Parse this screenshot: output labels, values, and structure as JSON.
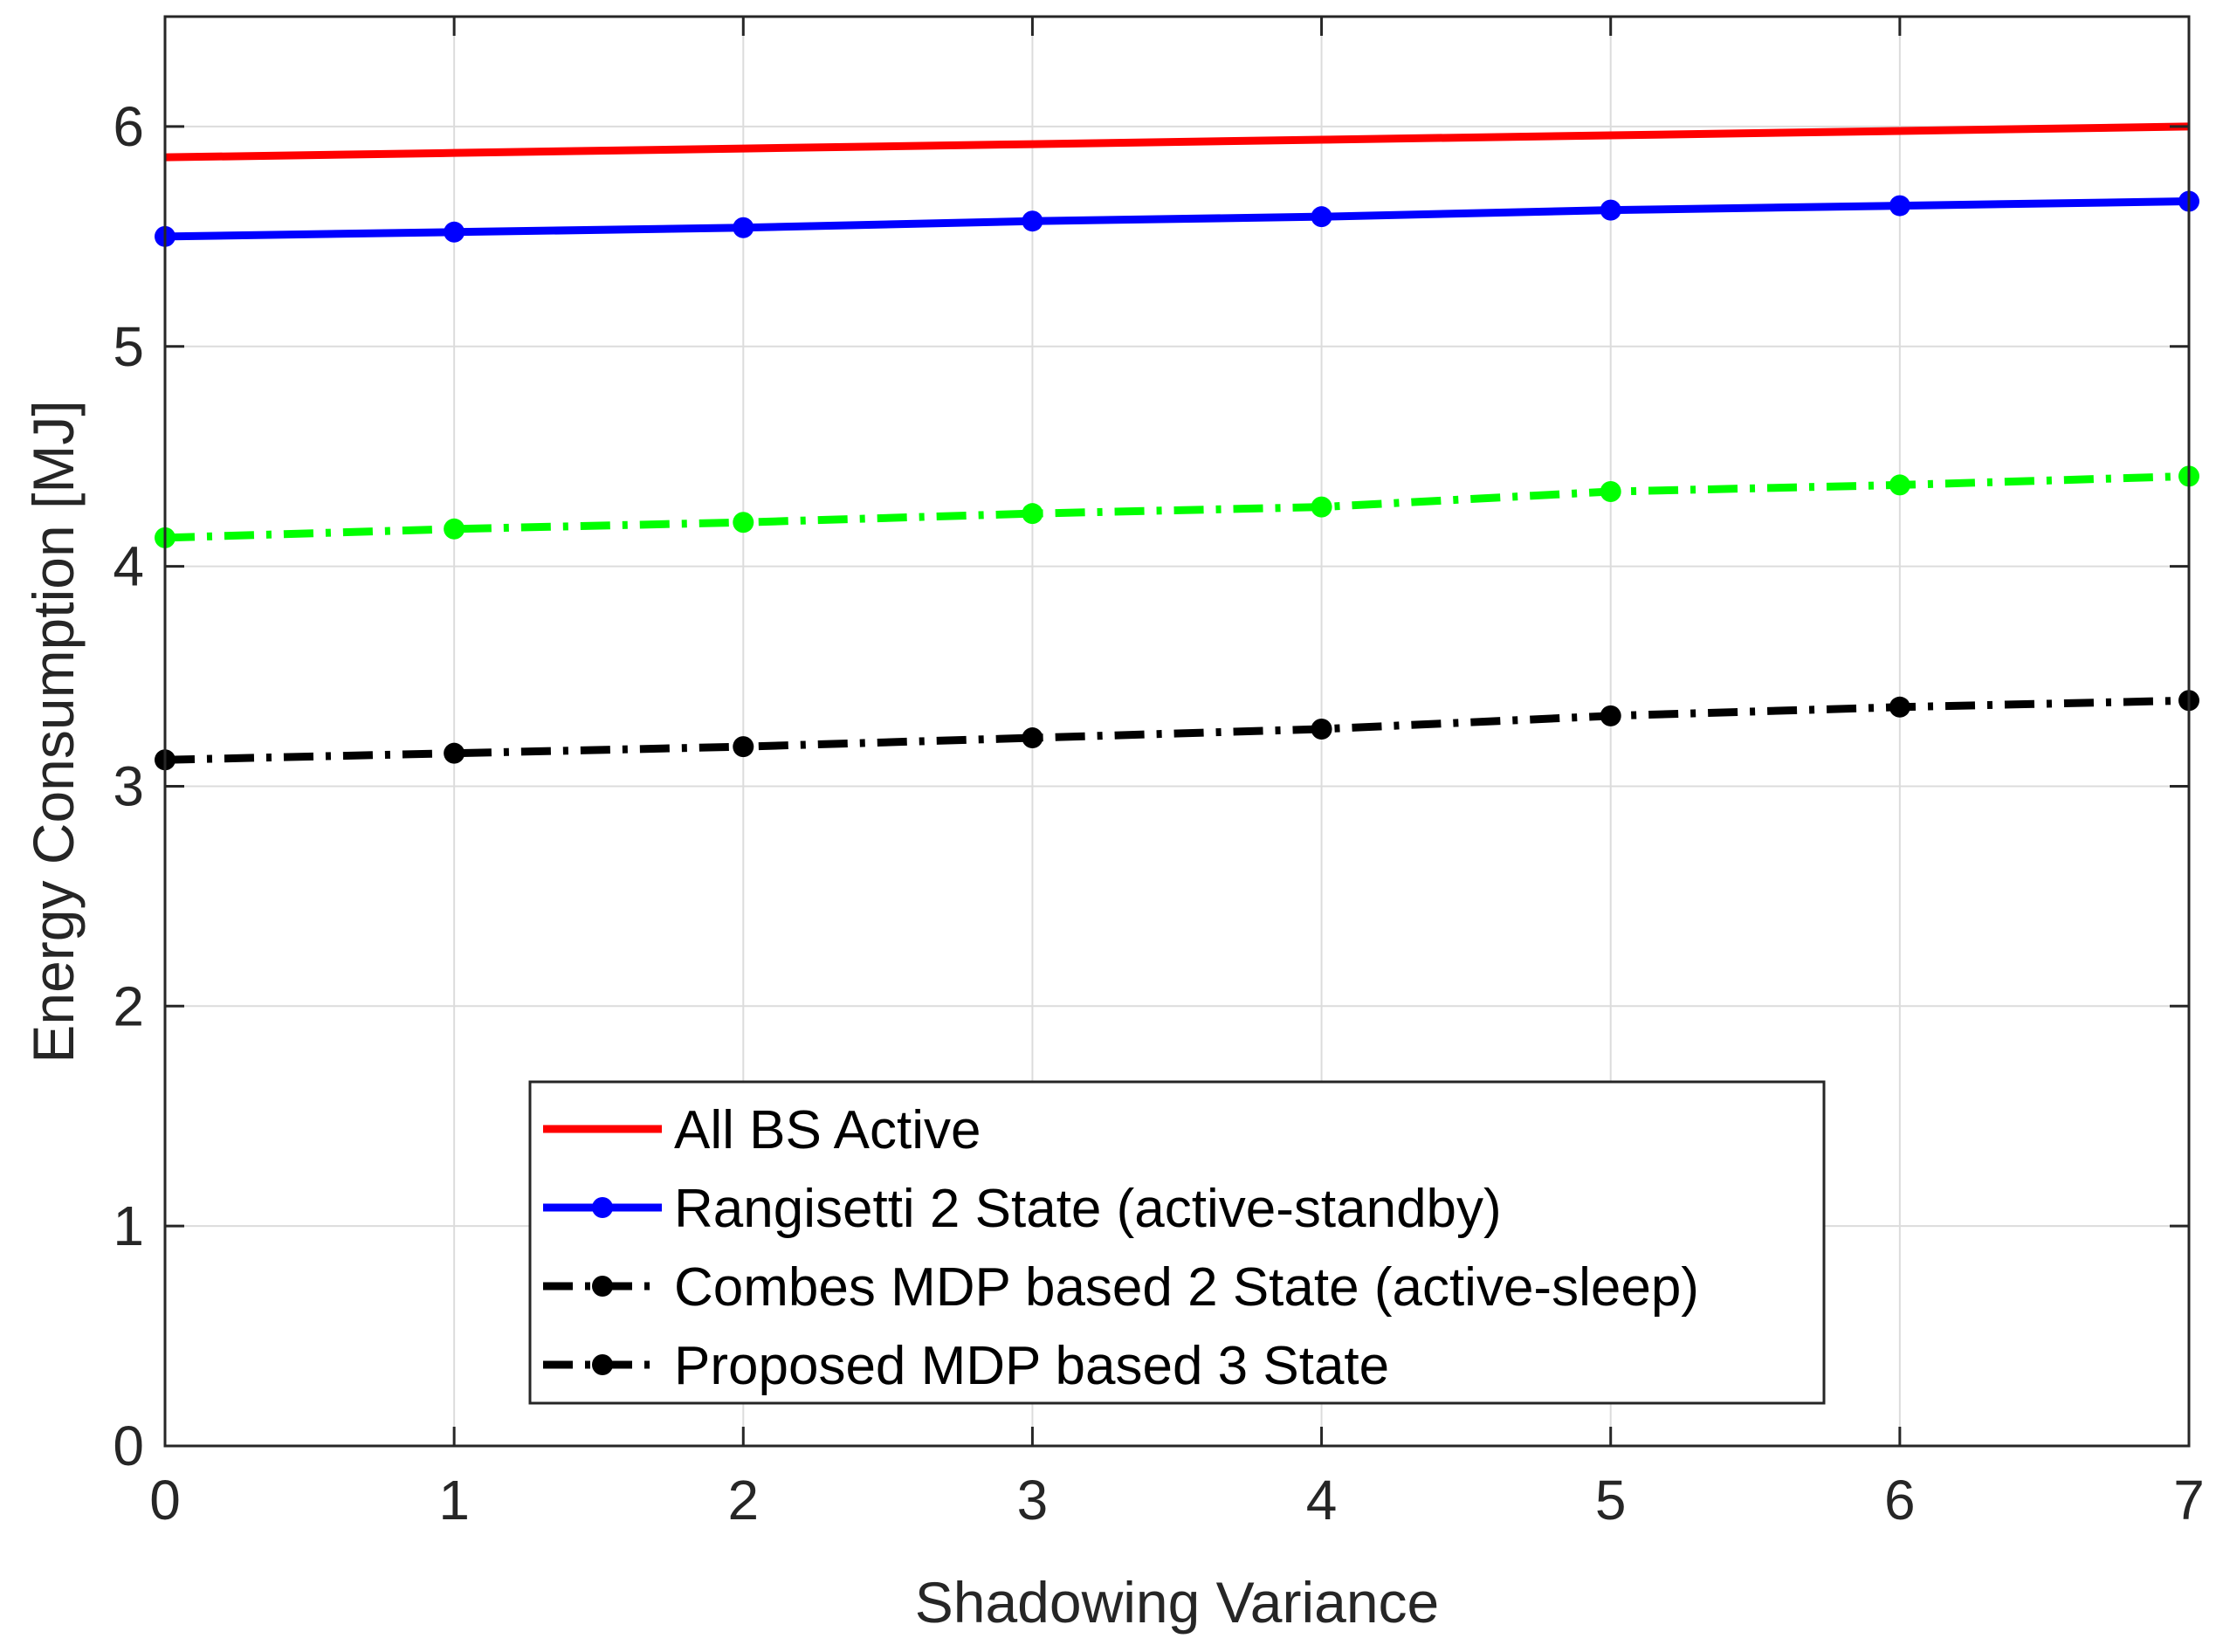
{
  "chart_data": {
    "type": "line",
    "title": "",
    "xlabel": "Shadowing Variance",
    "ylabel": "Energy Consumption [MJ]",
    "xlim": [
      0,
      7
    ],
    "ylim": [
      0,
      6.5
    ],
    "xticks": [
      0,
      1,
      2,
      3,
      4,
      5,
      6,
      7
    ],
    "yticks": [
      0,
      1,
      2,
      3,
      4,
      5,
      6
    ],
    "grid": true,
    "legend_position": "bottom-center",
    "x": [
      0,
      1,
      2,
      3,
      4,
      5,
      6,
      7
    ],
    "series": [
      {
        "name": "All BS Active",
        "color": "#ff0000",
        "line_style": "solid",
        "marker": "none",
        "values": [
          5.86,
          5.88,
          5.9,
          5.92,
          5.94,
          5.96,
          5.98,
          6.0
        ]
      },
      {
        "name": "Rangisetti 2 State (active-standby)",
        "color": "#0000ff",
        "line_style": "solid",
        "marker": "circle",
        "values": [
          5.5,
          5.52,
          5.54,
          5.57,
          5.59,
          5.62,
          5.64,
          5.66
        ]
      },
      {
        "name": "Combes MDP based 2 State (active-sleep)",
        "color": "#00ff00",
        "legend_color": "#000000",
        "line_style": "dashdot",
        "marker": "circle",
        "values": [
          4.13,
          4.17,
          4.2,
          4.24,
          4.27,
          4.34,
          4.37,
          4.41
        ]
      },
      {
        "name": "Proposed MDP based 3 State",
        "color": "#000000",
        "line_style": "dashdot",
        "marker": "circle",
        "values": [
          3.12,
          3.15,
          3.18,
          3.22,
          3.26,
          3.32,
          3.36,
          3.39
        ]
      }
    ]
  }
}
